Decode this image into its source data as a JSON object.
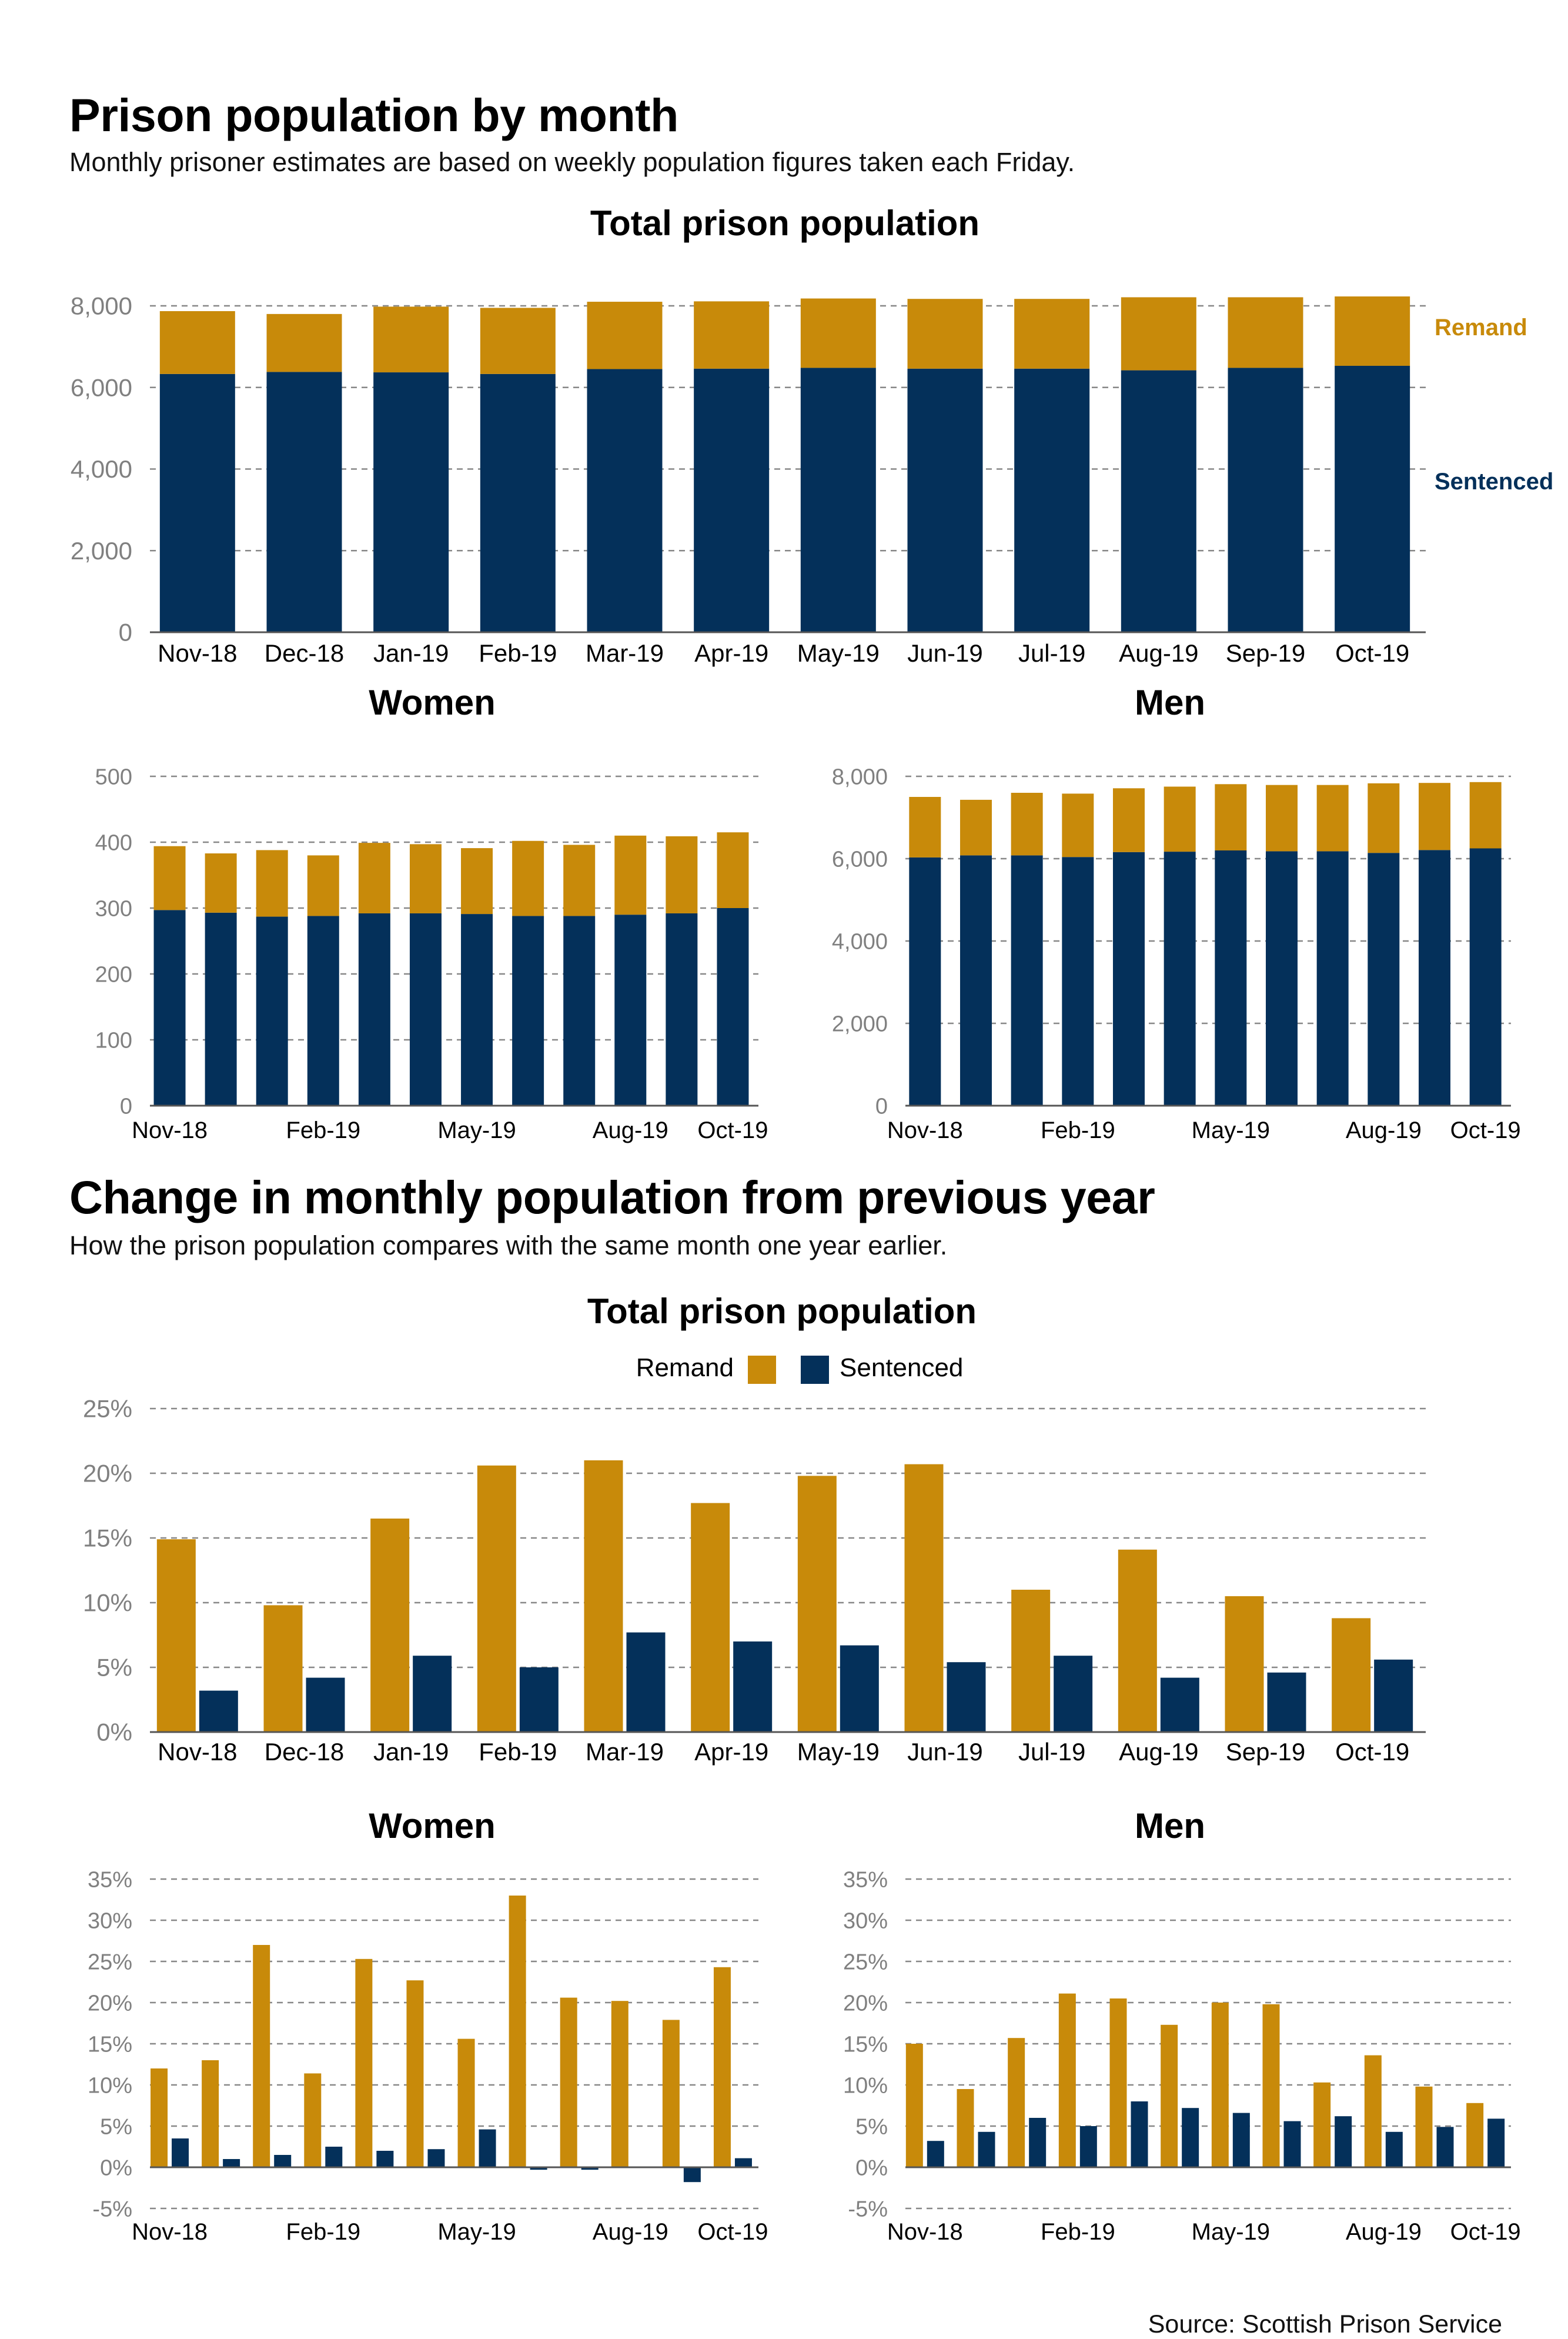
{
  "header1": {
    "title": "Prison population by month",
    "subtitle": "Monthly prisoner estimates are based on weekly population figures taken each Friday."
  },
  "header2": {
    "title": "Change in monthly population from previous year",
    "subtitle": "How the prison population compares with the same month one year earlier."
  },
  "source": "Source: Scottish Prison Service",
  "colors": {
    "remand": "#C88A0A",
    "sentenced": "#04305A",
    "grid": "#888888",
    "tick": "#808080"
  },
  "chart_data": [
    {
      "type": "bar",
      "stacked": true,
      "title": "Total prison population",
      "categories": [
        "Nov-18",
        "Dec-18",
        "Jan-19",
        "Feb-19",
        "Mar-19",
        "Apr-19",
        "May-19",
        "Jun-19",
        "Jul-19",
        "Aug-19",
        "Sep-19",
        "Oct-19"
      ],
      "x_tick_labels": [
        "Nov-18",
        "Dec-18",
        "Jan-19",
        "Feb-19",
        "Mar-19",
        "Apr-19",
        "May-19",
        "Jun-19",
        "Jul-19",
        "Aug-19",
        "Sep-19",
        "Oct-19"
      ],
      "y_ticks": [
        0,
        2000,
        4000,
        6000,
        8000
      ],
      "y_tick_labels": [
        "0",
        "2,000",
        "4,000",
        "6,000",
        "8,000"
      ],
      "ylim": [
        0,
        8000
      ],
      "series": [
        {
          "name": "Sentenced",
          "values": [
            6330,
            6380,
            6370,
            6330,
            6450,
            6460,
            6480,
            6460,
            6460,
            6420,
            6480,
            6530
          ]
        },
        {
          "name": "Remand",
          "values": [
            1540,
            1420,
            1610,
            1620,
            1650,
            1650,
            1700,
            1710,
            1710,
            1790,
            1730,
            1700
          ]
        }
      ],
      "series_labels": [
        "Remand",
        "Sentenced"
      ],
      "legend": "right, inline"
    },
    {
      "type": "bar",
      "stacked": true,
      "title": "Women",
      "categories": [
        "Nov-18",
        "Dec-18",
        "Jan-19",
        "Feb-19",
        "Mar-19",
        "Apr-19",
        "May-19",
        "Jun-19",
        "Jul-19",
        "Aug-19",
        "Sep-19",
        "Oct-19"
      ],
      "x_tick_labels": [
        "Nov-18",
        "",
        "",
        "Feb-19",
        "",
        "",
        "May-19",
        "",
        "",
        "Aug-19",
        "",
        "Oct-19"
      ],
      "y_ticks": [
        0,
        100,
        200,
        300,
        400,
        500
      ],
      "y_tick_labels": [
        "0",
        "100",
        "200",
        "300",
        "400",
        "500"
      ],
      "ylim": [
        0,
        500
      ],
      "series": [
        {
          "name": "Sentenced",
          "values": [
            297,
            293,
            287,
            288,
            292,
            292,
            291,
            288,
            288,
            290,
            292,
            300
          ]
        },
        {
          "name": "Remand",
          "values": [
            97,
            90,
            101,
            92,
            107,
            105,
            100,
            114,
            108,
            120,
            117,
            115
          ]
        }
      ]
    },
    {
      "type": "bar",
      "stacked": true,
      "title": "Men",
      "categories": [
        "Nov-18",
        "Dec-18",
        "Jan-19",
        "Feb-19",
        "Mar-19",
        "Apr-19",
        "May-19",
        "Jun-19",
        "Jul-19",
        "Aug-19",
        "Sep-19",
        "Oct-19"
      ],
      "x_tick_labels": [
        "Nov-18",
        "",
        "",
        "Feb-19",
        "",
        "",
        "May-19",
        "",
        "",
        "Aug-19",
        "",
        "Oct-19"
      ],
      "y_ticks": [
        0,
        2000,
        4000,
        6000,
        8000
      ],
      "y_tick_labels": [
        "0",
        "2,000",
        "4,000",
        "6,000",
        "8,000"
      ],
      "ylim": [
        0,
        8000
      ],
      "series": [
        {
          "name": "Sentenced",
          "values": [
            6030,
            6080,
            6080,
            6040,
            6160,
            6170,
            6200,
            6180,
            6180,
            6140,
            6210,
            6250
          ]
        },
        {
          "name": "Remand",
          "values": [
            1470,
            1350,
            1520,
            1540,
            1550,
            1580,
            1610,
            1610,
            1610,
            1690,
            1630,
            1610
          ]
        }
      ]
    },
    {
      "type": "bar",
      "stacked": false,
      "title": "Total prison population",
      "categories": [
        "Nov-18",
        "Dec-18",
        "Jan-19",
        "Feb-19",
        "Mar-19",
        "Apr-19",
        "May-19",
        "Jun-19",
        "Jul-19",
        "Aug-19",
        "Sep-19",
        "Oct-19"
      ],
      "x_tick_labels": [
        "Nov-18",
        "Dec-18",
        "Jan-19",
        "Feb-19",
        "Mar-19",
        "Apr-19",
        "May-19",
        "Jun-19",
        "Jul-19",
        "Aug-19",
        "Sep-19",
        "Oct-19"
      ],
      "y_ticks": [
        0,
        5,
        10,
        15,
        20,
        25
      ],
      "y_tick_labels": [
        "0%",
        "5%",
        "10%",
        "15%",
        "20%",
        "25%"
      ],
      "ylim": [
        0,
        25
      ],
      "series": [
        {
          "name": "Remand",
          "values": [
            14.9,
            9.8,
            16.5,
            20.6,
            21.0,
            17.7,
            19.8,
            20.7,
            11.0,
            14.1,
            10.5,
            8.8
          ]
        },
        {
          "name": "Sentenced",
          "values": [
            3.2,
            4.2,
            5.9,
            5.0,
            7.7,
            7.0,
            6.7,
            5.4,
            5.9,
            4.2,
            4.6,
            5.6
          ]
        }
      ],
      "legend": "top-center"
    },
    {
      "type": "bar",
      "stacked": false,
      "title": "Women",
      "categories": [
        "Nov-18",
        "Dec-18",
        "Jan-19",
        "Feb-19",
        "Mar-19",
        "Apr-19",
        "May-19",
        "Jun-19",
        "Jul-19",
        "Aug-19",
        "Sep-19",
        "Oct-19"
      ],
      "x_tick_labels": [
        "Nov-18",
        "",
        "",
        "Feb-19",
        "",
        "",
        "May-19",
        "",
        "",
        "Aug-19",
        "",
        "Oct-19"
      ],
      "y_ticks": [
        -5,
        0,
        5,
        10,
        15,
        20,
        25,
        30,
        35
      ],
      "y_tick_labels": [
        "-5%",
        "0%",
        "5%",
        "10%",
        "15%",
        "20%",
        "25%",
        "30%",
        "35%"
      ],
      "ylim": [
        -5,
        35
      ],
      "series": [
        {
          "name": "Remand",
          "values": [
            12.0,
            13.0,
            27.0,
            11.4,
            25.3,
            22.7,
            15.6,
            33.0,
            20.6,
            20.2,
            17.9,
            24.3
          ]
        },
        {
          "name": "Sentenced",
          "values": [
            3.5,
            1.0,
            1.5,
            2.5,
            2.0,
            2.2,
            4.6,
            -0.3,
            -0.3,
            0.0,
            -1.8,
            1.1
          ]
        }
      ]
    },
    {
      "type": "bar",
      "stacked": false,
      "title": "Men",
      "categories": [
        "Nov-18",
        "Dec-18",
        "Jan-19",
        "Feb-19",
        "Mar-19",
        "Apr-19",
        "May-19",
        "Jun-19",
        "Jul-19",
        "Aug-19",
        "Sep-19",
        "Oct-19"
      ],
      "x_tick_labels": [
        "Nov-18",
        "",
        "",
        "Feb-19",
        "",
        "",
        "May-19",
        "",
        "",
        "Aug-19",
        "",
        "Oct-19"
      ],
      "y_ticks": [
        -5,
        0,
        5,
        10,
        15,
        20,
        25,
        30,
        35
      ],
      "y_tick_labels": [
        "-5%",
        "0%",
        "5%",
        "10%",
        "15%",
        "20%",
        "25%",
        "30%",
        "35%"
      ],
      "ylim": [
        -5,
        35
      ],
      "series": [
        {
          "name": "Remand",
          "values": [
            15.0,
            9.5,
            15.7,
            21.1,
            20.5,
            17.3,
            20.0,
            19.8,
            10.3,
            13.6,
            9.8,
            7.8
          ]
        },
        {
          "name": "Sentenced",
          "values": [
            3.2,
            4.3,
            6.0,
            5.0,
            8.0,
            7.2,
            6.6,
            5.6,
            6.2,
            4.3,
            4.9,
            5.9
          ]
        }
      ]
    }
  ]
}
